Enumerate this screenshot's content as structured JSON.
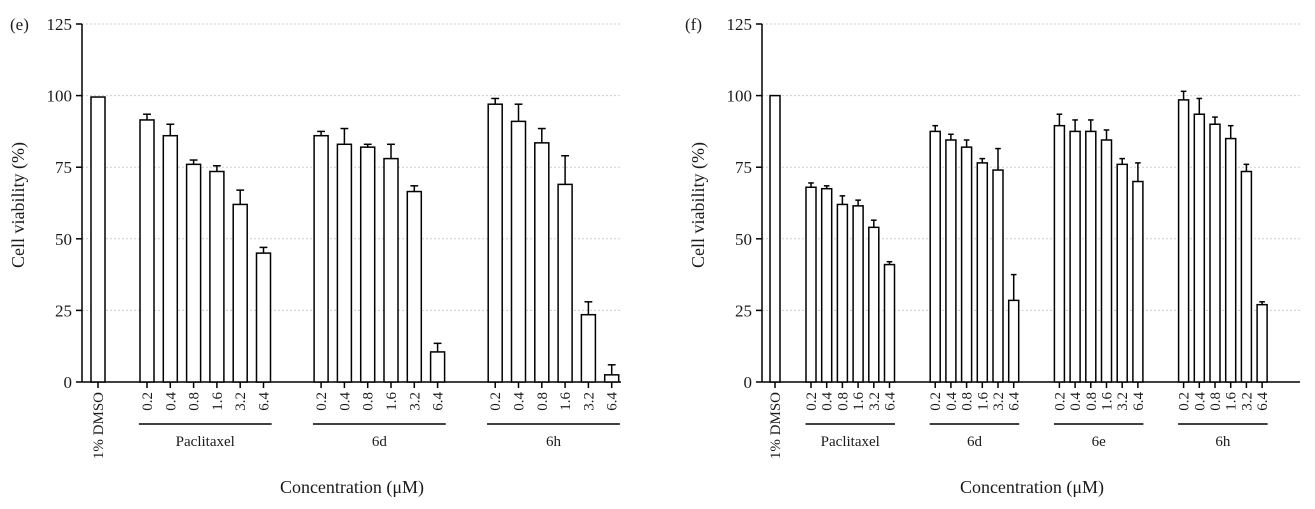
{
  "chart_data": [
    {
      "type": "bar",
      "panel_label": "(e)",
      "ylabel": "Cell viability (%)",
      "xlabel": "Concentration (μM)",
      "ylim": [
        0,
        125
      ],
      "yticks": [
        0,
        25,
        50,
        75,
        100,
        125
      ],
      "grid": true,
      "control": {
        "label": "1% DMSO",
        "value": 99.5,
        "error": 0
      },
      "groups": [
        {
          "name": "Paclitaxel",
          "x": [
            "0.2",
            "0.4",
            "0.8",
            "1.6",
            "3.2",
            "6.4"
          ],
          "values": [
            91.5,
            86,
            76,
            73.5,
            62,
            45
          ],
          "errors": [
            2,
            4,
            1.5,
            2,
            5,
            2
          ]
        },
        {
          "name": "6d",
          "x": [
            "0.2",
            "0.4",
            "0.8",
            "1.6",
            "3.2",
            "6.4"
          ],
          "values": [
            86,
            83,
            82,
            78,
            66.5,
            10.5
          ],
          "errors": [
            1.5,
            5.5,
            1,
            5,
            2,
            3
          ]
        },
        {
          "name": "6h",
          "x": [
            "0.2",
            "0.4",
            "0.8",
            "1.6",
            "3.2",
            "6.4"
          ],
          "values": [
            97,
            91,
            83.5,
            69,
            23.5,
            2.5
          ],
          "errors": [
            2,
            6,
            5,
            10,
            4.5,
            3.5
          ]
        }
      ]
    },
    {
      "type": "bar",
      "panel_label": "(f)",
      "ylabel": "Cell viability (%)",
      "xlabel": "Concentration (μM)",
      "ylim": [
        0,
        125
      ],
      "yticks": [
        0,
        25,
        50,
        75,
        100,
        125
      ],
      "grid": true,
      "control": {
        "label": "1% DMSO",
        "value": 100,
        "error": 0
      },
      "groups": [
        {
          "name": "Paclitaxel",
          "x": [
            "0.2",
            "0.4",
            "0.8",
            "1.6",
            "3.2",
            "6.4"
          ],
          "values": [
            68,
            67.5,
            62,
            61.5,
            54,
            41
          ],
          "errors": [
            1.5,
            1,
            3,
            2,
            2.5,
            1
          ]
        },
        {
          "name": "6d",
          "x": [
            "0.2",
            "0.4",
            "0.8",
            "1.6",
            "3.2",
            "6.4"
          ],
          "values": [
            87.5,
            84.5,
            82,
            76.5,
            74,
            28.5
          ],
          "errors": [
            2,
            2,
            2.5,
            1.5,
            7.5,
            9
          ]
        },
        {
          "name": "6e",
          "x": [
            "0.2",
            "0.4",
            "0.8",
            "1.6",
            "3.2",
            "6.4"
          ],
          "values": [
            89.5,
            87.5,
            87.5,
            84.5,
            76,
            70
          ],
          "errors": [
            4,
            4,
            4,
            3.5,
            2,
            6.5
          ]
        },
        {
          "name": "6h",
          "x": [
            "0.2",
            "0.4",
            "0.8",
            "1.6",
            "3.2",
            "6.4"
          ],
          "values": [
            98.5,
            93.5,
            90,
            85,
            73.5,
            27
          ],
          "errors": [
            3,
            5.5,
            2.5,
            4.5,
            2.5,
            1
          ]
        }
      ]
    }
  ]
}
